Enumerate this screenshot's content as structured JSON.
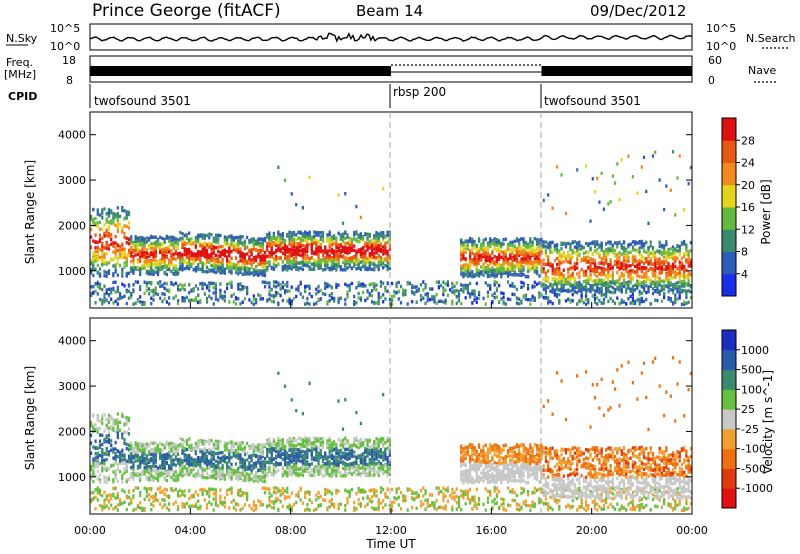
{
  "header": {
    "station": "Prince George (fitACF)",
    "beam": "Beam 14",
    "date": "09/Dec/2012"
  },
  "top_panels": {
    "nsky_label": "N.Sky",
    "nsky_ticks": [
      "10^5",
      "10^0"
    ],
    "nsearch_label": "N.Search",
    "freq_label_1": "Freq.",
    "freq_label_2": "[MHz]",
    "freq_ticks": [
      "18",
      "8"
    ],
    "nave_ticks": [
      "60",
      "0"
    ],
    "nave_label": "Nave",
    "cpid_label": "CPID",
    "cpid_segments": [
      {
        "label": "twofsound 3501",
        "start": 0,
        "end": 12
      },
      {
        "label": "rbsp 200",
        "start": 12,
        "end": 18
      },
      {
        "label": "twofsound 3501",
        "start": 18,
        "end": 24
      }
    ]
  },
  "chart_data": [
    {
      "type": "heatmap",
      "title": "",
      "ylabel": "Slant Range [km]",
      "xlim": [
        0,
        24
      ],
      "ylim": [
        180,
        4500
      ],
      "yticks": [
        1000,
        2000,
        3000,
        4000
      ],
      "colorbar": {
        "label": "Power [dB]",
        "ticks": [
          "4",
          "8",
          "12",
          "16",
          "20",
          "24",
          "28"
        ],
        "colors": [
          "#1a2ee8",
          "#2f5cb8",
          "#3a8a70",
          "#66b840",
          "#e4d41e",
          "#f08a1e",
          "#e85a10",
          "#e01010"
        ]
      }
    },
    {
      "type": "heatmap",
      "title": "",
      "ylabel": "Slant Range [km]",
      "xlabel": "Time UT",
      "xlim": [
        0,
        24
      ],
      "ylim": [
        180,
        4500
      ],
      "xticks": [
        "00:00",
        "04:00",
        "08:00",
        "12:00",
        "16:00",
        "20:00",
        "00:00"
      ],
      "yticks": [
        1000,
        2000,
        3000,
        4000
      ],
      "colorbar": {
        "label": "Velocity [m s^-1]",
        "ticks": [
          "1000",
          "500",
          "100",
          "25",
          "-25",
          "-100",
          "-500",
          "-1000"
        ],
        "colors": [
          "#1a2ec0",
          "#2a5aa8",
          "#3a8a70",
          "#66c040",
          "#c8c8c8",
          "#f0a030",
          "#f07010",
          "#e03a10",
          "#e01010"
        ]
      }
    }
  ]
}
